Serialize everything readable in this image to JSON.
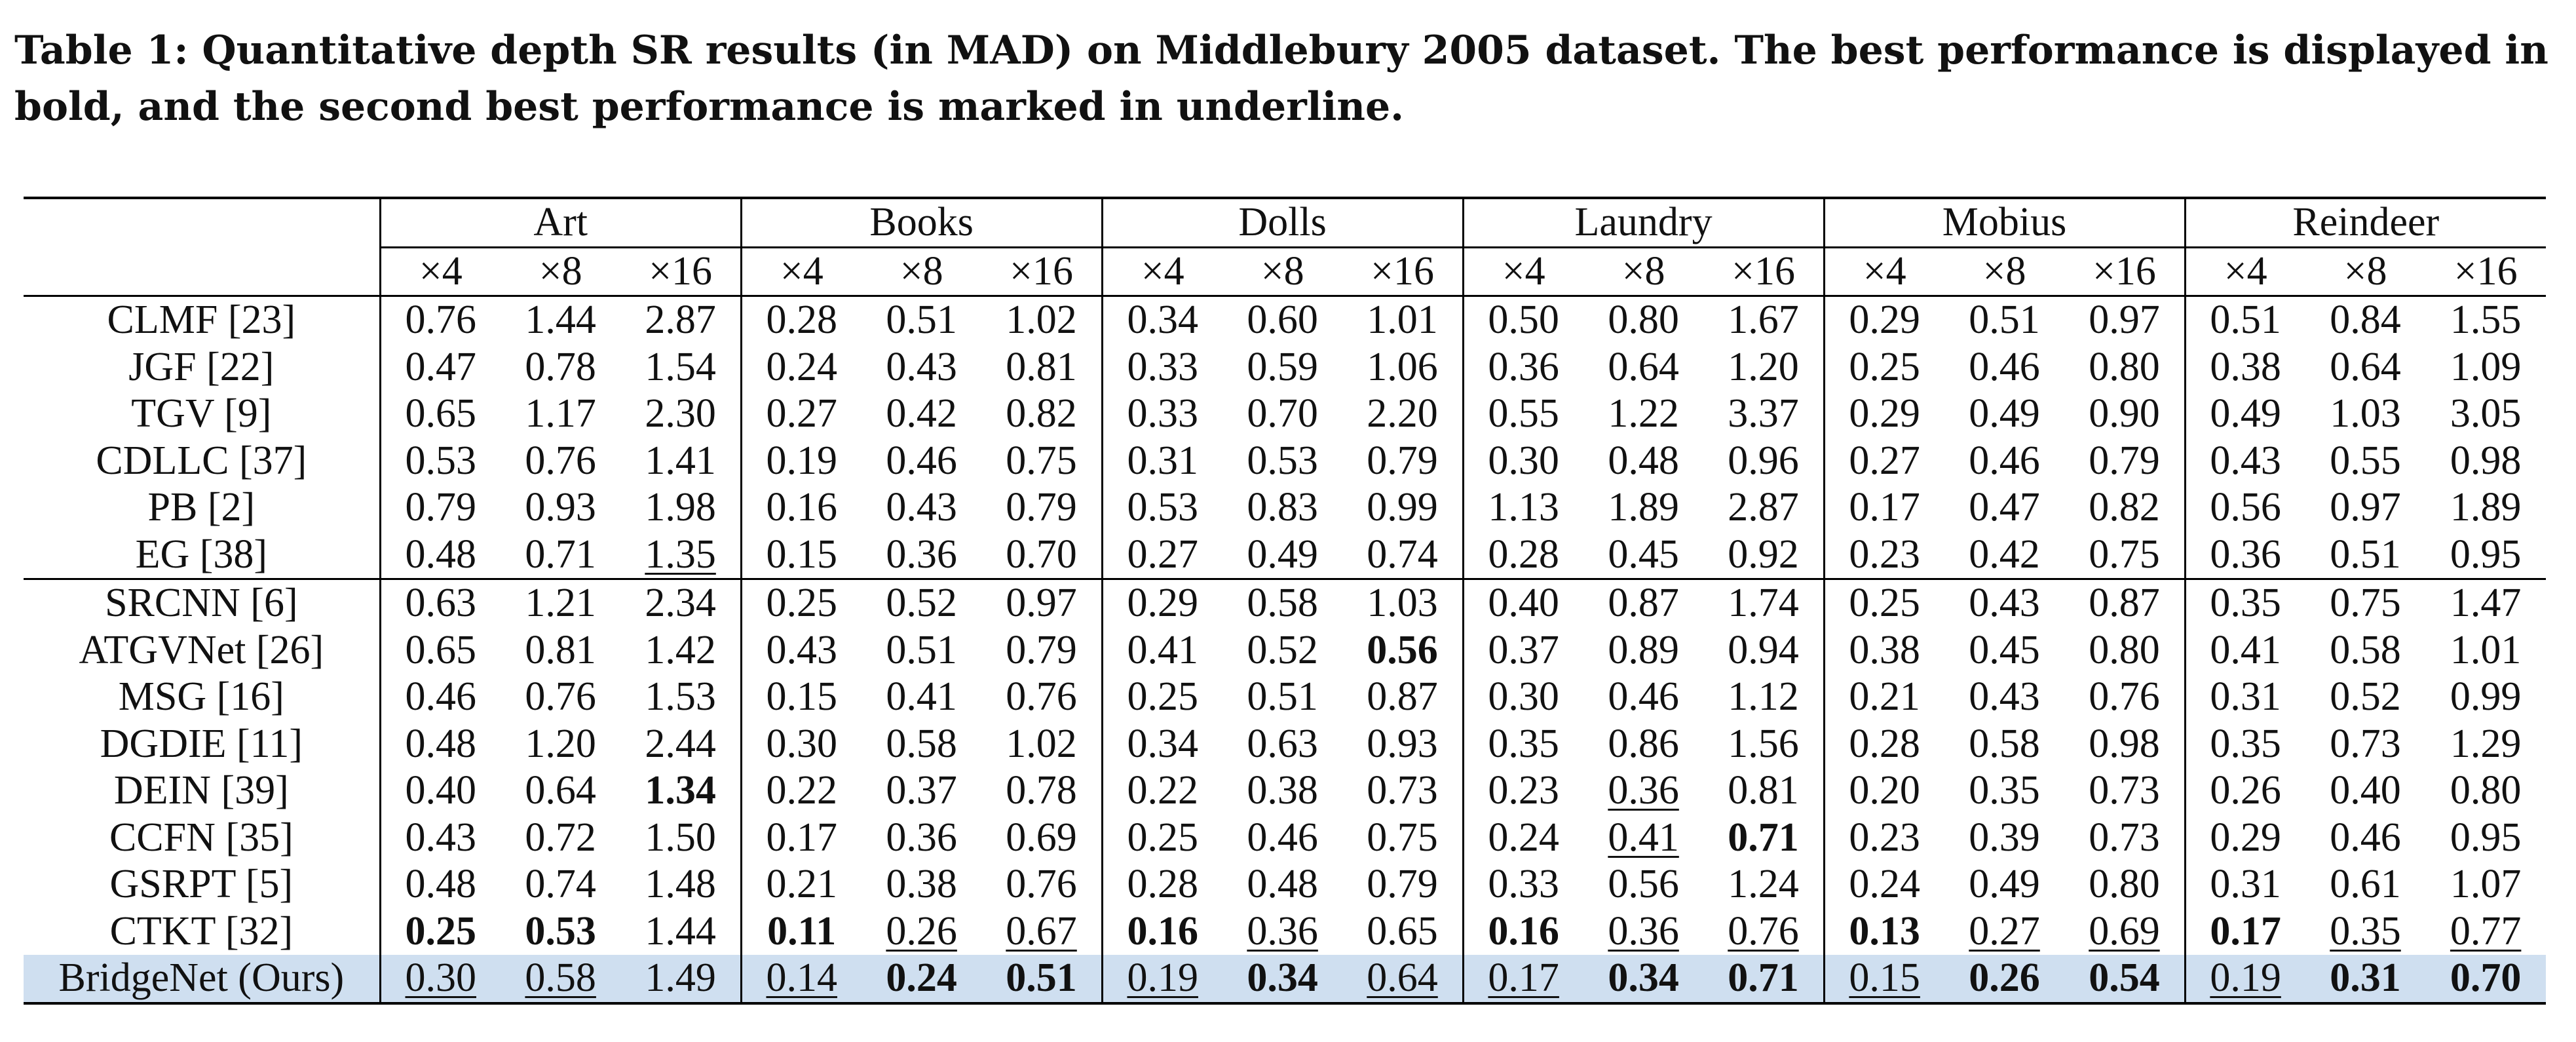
{
  "caption": "Table 1: Quantitative depth SR results (in MAD) on Middlebury 2005 dataset. The best performance is displayed in bold, and the second best performance is marked in underline.",
  "datasets": [
    "Art",
    "Books",
    "Dolls",
    "Laundry",
    "Mobius",
    "Reindeer"
  ],
  "scales": [
    "×4",
    "×8",
    "×16"
  ],
  "groups": [
    {
      "rows": [
        {
          "method": "CLMF [23]",
          "values": [
            "0.76",
            "1.44",
            "2.87",
            "0.28",
            "0.51",
            "1.02",
            "0.34",
            "0.60",
            "1.01",
            "0.50",
            "0.80",
            "1.67",
            "0.29",
            "0.51",
            "0.97",
            "0.51",
            "0.84",
            "1.55"
          ],
          "marks": []
        },
        {
          "method": "JGF [22]",
          "values": [
            "0.47",
            "0.78",
            "1.54",
            "0.24",
            "0.43",
            "0.81",
            "0.33",
            "0.59",
            "1.06",
            "0.36",
            "0.64",
            "1.20",
            "0.25",
            "0.46",
            "0.80",
            "0.38",
            "0.64",
            "1.09"
          ],
          "marks": []
        },
        {
          "method": "TGV [9]",
          "values": [
            "0.65",
            "1.17",
            "2.30",
            "0.27",
            "0.42",
            "0.82",
            "0.33",
            "0.70",
            "2.20",
            "0.55",
            "1.22",
            "3.37",
            "0.29",
            "0.49",
            "0.90",
            "0.49",
            "1.03",
            "3.05"
          ],
          "marks": []
        },
        {
          "method": "CDLLC [37]",
          "values": [
            "0.53",
            "0.76",
            "1.41",
            "0.19",
            "0.46",
            "0.75",
            "0.31",
            "0.53",
            "0.79",
            "0.30",
            "0.48",
            "0.96",
            "0.27",
            "0.46",
            "0.79",
            "0.43",
            "0.55",
            "0.98"
          ],
          "marks": []
        },
        {
          "method": "PB [2]",
          "values": [
            "0.79",
            "0.93",
            "1.98",
            "0.16",
            "0.43",
            "0.79",
            "0.53",
            "0.83",
            "0.99",
            "1.13",
            "1.89",
            "2.87",
            "0.17",
            "0.47",
            "0.82",
            "0.56",
            "0.97",
            "1.89"
          ],
          "marks": []
        },
        {
          "method": "EG [38]",
          "values": [
            "0.48",
            "0.71",
            "1.35",
            "0.15",
            "0.36",
            "0.70",
            "0.27",
            "0.49",
            "0.74",
            "0.28",
            "0.45",
            "0.92",
            "0.23",
            "0.42",
            "0.75",
            "0.36",
            "0.51",
            "0.95"
          ],
          "marks": [
            "",
            "",
            "u",
            "",
            "",
            "",
            "",
            "",
            "",
            "",
            "",
            "",
            "",
            "",
            "",
            "",
            "",
            ""
          ]
        }
      ]
    },
    {
      "rows": [
        {
          "method": "SRCNN [6]",
          "values": [
            "0.63",
            "1.21",
            "2.34",
            "0.25",
            "0.52",
            "0.97",
            "0.29",
            "0.58",
            "1.03",
            "0.40",
            "0.87",
            "1.74",
            "0.25",
            "0.43",
            "0.87",
            "0.35",
            "0.75",
            "1.47"
          ],
          "marks": []
        },
        {
          "method": "ATGVNet [26]",
          "values": [
            "0.65",
            "0.81",
            "1.42",
            "0.43",
            "0.51",
            "0.79",
            "0.41",
            "0.52",
            "0.56",
            "0.37",
            "0.89",
            "0.94",
            "0.38",
            "0.45",
            "0.80",
            "0.41",
            "0.58",
            "1.01"
          ],
          "marks": [
            "",
            "",
            "",
            "",
            "",
            "",
            "",
            "",
            "b",
            "",
            "",
            "",
            "",
            "",
            "",
            "",
            "",
            ""
          ]
        },
        {
          "method": "MSG [16]",
          "values": [
            "0.46",
            "0.76",
            "1.53",
            "0.15",
            "0.41",
            "0.76",
            "0.25",
            "0.51",
            "0.87",
            "0.30",
            "0.46",
            "1.12",
            "0.21",
            "0.43",
            "0.76",
            "0.31",
            "0.52",
            "0.99"
          ],
          "marks": []
        },
        {
          "method": "DGDIE [11]",
          "values": [
            "0.48",
            "1.20",
            "2.44",
            "0.30",
            "0.58",
            "1.02",
            "0.34",
            "0.63",
            "0.93",
            "0.35",
            "0.86",
            "1.56",
            "0.28",
            "0.58",
            "0.98",
            "0.35",
            "0.73",
            "1.29"
          ],
          "marks": []
        },
        {
          "method": "DEIN [39]",
          "values": [
            "0.40",
            "0.64",
            "1.34",
            "0.22",
            "0.37",
            "0.78",
            "0.22",
            "0.38",
            "0.73",
            "0.23",
            "0.36",
            "0.81",
            "0.20",
            "0.35",
            "0.73",
            "0.26",
            "0.40",
            "0.80"
          ],
          "marks": [
            "",
            "",
            "b",
            "",
            "",
            "",
            "",
            "",
            "",
            "",
            "u",
            "",
            "",
            "",
            "",
            "",
            "",
            ""
          ]
        },
        {
          "method": "CCFN [35]",
          "values": [
            "0.43",
            "0.72",
            "1.50",
            "0.17",
            "0.36",
            "0.69",
            "0.25",
            "0.46",
            "0.75",
            "0.24",
            "0.41",
            "0.71",
            "0.23",
            "0.39",
            "0.73",
            "0.29",
            "0.46",
            "0.95"
          ],
          "marks": [
            "",
            "",
            "",
            "",
            "",
            "",
            "",
            "",
            "",
            "",
            "u",
            "b",
            "",
            "",
            "",
            "",
            "",
            ""
          ]
        },
        {
          "method": "GSRPT [5]",
          "values": [
            "0.48",
            "0.74",
            "1.48",
            "0.21",
            "0.38",
            "0.76",
            "0.28",
            "0.48",
            "0.79",
            "0.33",
            "0.56",
            "1.24",
            "0.24",
            "0.49",
            "0.80",
            "0.31",
            "0.61",
            "1.07"
          ],
          "marks": []
        },
        {
          "method": "CTKT [32]",
          "values": [
            "0.25",
            "0.53",
            "1.44",
            "0.11",
            "0.26",
            "0.67",
            "0.16",
            "0.36",
            "0.65",
            "0.16",
            "0.36",
            "0.76",
            "0.13",
            "0.27",
            "0.69",
            "0.17",
            "0.35",
            "0.77"
          ],
          "marks": [
            "b",
            "b",
            "",
            "b",
            "u",
            "u",
            "b",
            "u",
            "",
            "b",
            "u",
            "u",
            "b",
            "u",
            "u",
            "b",
            "u",
            "u"
          ]
        },
        {
          "method": "BridgeNet (Ours)",
          "values": [
            "0.30",
            "0.58",
            "1.49",
            "0.14",
            "0.24",
            "0.51",
            "0.19",
            "0.34",
            "0.64",
            "0.17",
            "0.34",
            "0.71",
            "0.15",
            "0.26",
            "0.54",
            "0.19",
            "0.31",
            "0.70"
          ],
          "marks": [
            "u",
            "u",
            "",
            "u",
            "b",
            "b",
            "u",
            "b",
            "u",
            "u",
            "b",
            "b",
            "u",
            "b",
            "b",
            "u",
            "b",
            "b"
          ]
        }
      ]
    }
  ]
}
